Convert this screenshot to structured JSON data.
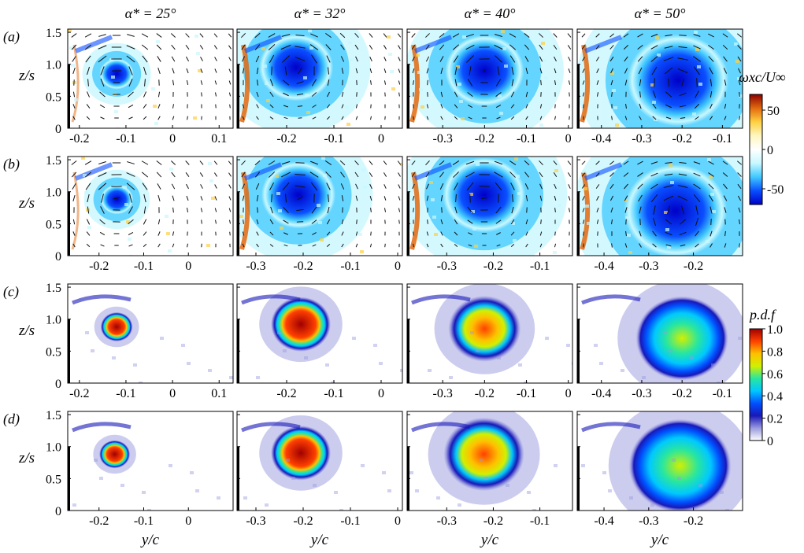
{
  "chart_data": {
    "type": "heatmap",
    "figure": {
      "column_titles": [
        "α* = 25°",
        "α* = 32°",
        "α* = 40°",
        "α* = 50°"
      ],
      "row_labels": [
        "(a)",
        "(b)",
        "(c)",
        "(d)"
      ],
      "ylabel": "z/s",
      "xlabel": "y/c",
      "ylim": [
        0,
        1.55
      ],
      "yticks": [
        "0",
        "0.5",
        "1.0",
        "1.5"
      ]
    },
    "rows": [
      {
        "label": "(a)",
        "quantity": "vorticity",
        "show_vectors": true,
        "show_xlabel": false,
        "panels": [
          {
            "xlim": [
              -0.225,
              0.13
            ],
            "xticks": [
              "-0.2",
              "-0.1",
              "0",
              "0.1"
            ],
            "xtick_values": [
              -0.2,
              -0.1,
              0,
              0.1
            ],
            "vortex": {
              "y": -0.12,
              "z": 0.85,
              "r": 0.035
            }
          },
          {
            "xlim": [
              -0.305,
              0.045
            ],
            "xticks": [
              "-0.2",
              "-0.1",
              "0"
            ],
            "xtick_values": [
              -0.2,
              -0.1,
              0
            ],
            "vortex": {
              "y": -0.18,
              "z": 0.95,
              "r": 0.075
            }
          },
          {
            "xlim": [
              -0.385,
              0.01
            ],
            "xticks": [
              "-0.3",
              "-0.2",
              "-0.1",
              "0"
            ],
            "xtick_values": [
              -0.3,
              -0.2,
              -0.1,
              0
            ],
            "vortex": {
              "y": -0.2,
              "z": 0.9,
              "r": 0.09
            }
          },
          {
            "xlim": [
              -0.46,
              -0.05
            ],
            "xticks": [
              "-0.4",
              "-0.3",
              "-0.2",
              "-0.1"
            ],
            "xtick_values": [
              -0.4,
              -0.3,
              -0.2,
              -0.1
            ],
            "vortex": {
              "y": -0.21,
              "z": 0.75,
              "r": 0.12
            }
          }
        ]
      },
      {
        "label": "(b)",
        "quantity": "vorticity",
        "show_vectors": true,
        "show_xlabel": false,
        "panels": [
          {
            "xlim": [
              -0.27,
              0.1
            ],
            "xticks": [
              "-0.2",
              "-0.1",
              "0"
            ],
            "xtick_values": [
              -0.2,
              -0.1,
              0
            ],
            "vortex": {
              "y": -0.16,
              "z": 0.88,
              "r": 0.035
            }
          },
          {
            "xlim": [
              -0.34,
              0.01
            ],
            "xticks": [
              "-0.3",
              "-0.2",
              "-0.1",
              "0"
            ],
            "xtick_values": [
              -0.3,
              -0.2,
              -0.1,
              0
            ],
            "vortex": {
              "y": -0.21,
              "z": 0.95,
              "r": 0.075
            }
          },
          {
            "xlim": [
              -0.385,
              -0.03
            ],
            "xticks": [
              "-0.3",
              "-0.2",
              "-0.1"
            ],
            "xtick_values": [
              -0.3,
              -0.2,
              -0.1
            ],
            "vortex": {
              "y": -0.22,
              "z": 0.95,
              "r": 0.085
            }
          },
          {
            "xlim": [
              -0.46,
              -0.09
            ],
            "xticks": [
              "-0.4",
              "-0.3",
              "-0.2"
            ],
            "xtick_values": [
              -0.4,
              -0.3,
              -0.2
            ],
            "vortex": {
              "y": -0.24,
              "z": 0.7,
              "r": 0.11
            }
          }
        ]
      },
      {
        "label": "(c)",
        "quantity": "pdf",
        "show_vectors": false,
        "show_xlabel": false,
        "panels": [
          {
            "xlim": [
              -0.225,
              0.13
            ],
            "xticks": [
              "-0.2",
              "-0.1",
              "0",
              "0.1"
            ],
            "xtick_values": [
              -0.2,
              -0.1,
              0,
              0.1
            ],
            "vortex": {
              "y": -0.12,
              "z": 0.88,
              "r": 0.03
            }
          },
          {
            "xlim": [
              -0.305,
              0.045
            ],
            "xticks": [
              "-0.2",
              "-0.1",
              "0"
            ],
            "xtick_values": [
              -0.2,
              -0.1,
              0
            ],
            "vortex": {
              "y": -0.17,
              "z": 0.92,
              "r": 0.055
            }
          },
          {
            "xlim": [
              -0.385,
              0.01
            ],
            "xticks": [
              "-0.3",
              "-0.2",
              "-0.1",
              "0"
            ],
            "xtick_values": [
              -0.3,
              -0.2,
              -0.1,
              0
            ],
            "vortex": {
              "y": -0.2,
              "z": 0.85,
              "r": 0.075
            }
          },
          {
            "xlim": [
              -0.46,
              -0.05
            ],
            "xticks": [
              "-0.4",
              "-0.3",
              "-0.2",
              "-0.1"
            ],
            "xtick_values": [
              -0.4,
              -0.3,
              -0.2,
              -0.1
            ],
            "vortex": {
              "y": -0.2,
              "z": 0.7,
              "r": 0.1
            }
          }
        ]
      },
      {
        "label": "(d)",
        "quantity": "pdf",
        "show_vectors": false,
        "show_xlabel": true,
        "panels": [
          {
            "xlim": [
              -0.27,
              0.1
            ],
            "xticks": [
              "-0.2",
              "-0.1",
              "0"
            ],
            "xtick_values": [
              -0.2,
              -0.1,
              0
            ],
            "vortex": {
              "y": -0.165,
              "z": 0.88,
              "r": 0.03
            }
          },
          {
            "xlim": [
              -0.34,
              0.01
            ],
            "xticks": [
              "-0.3",
              "-0.2",
              "-0.1",
              "0"
            ],
            "xtick_values": [
              -0.3,
              -0.2,
              -0.1,
              0
            ],
            "vortex": {
              "y": -0.205,
              "z": 0.9,
              "r": 0.055
            }
          },
          {
            "xlim": [
              -0.385,
              -0.03
            ],
            "xticks": [
              "-0.3",
              "-0.2",
              "-0.1"
            ],
            "xtick_values": [
              -0.3,
              -0.2,
              -0.1
            ],
            "vortex": {
              "y": -0.22,
              "z": 0.88,
              "r": 0.075
            }
          },
          {
            "xlim": [
              -0.46,
              -0.09
            ],
            "xticks": [
              "-0.4",
              "-0.3",
              "-0.2"
            ],
            "xtick_values": [
              -0.4,
              -0.3,
              -0.2
            ],
            "vortex": {
              "y": -0.23,
              "z": 0.7,
              "r": 0.1
            }
          }
        ]
      }
    ],
    "colorbars": [
      {
        "title": "ωxc/U∞",
        "range": [
          -70,
          70
        ],
        "ticks": [
          "50",
          "0",
          "-50"
        ],
        "tick_values": [
          50,
          0,
          -50
        ],
        "colors": [
          "#0000c8",
          "#0a4fff",
          "#3fc8ff",
          "#c8f8ff",
          "#ffffff",
          "#fff6c0",
          "#ffd040",
          "#e26a10",
          "#8c0000"
        ]
      },
      {
        "title": "p.d.f",
        "range": [
          0,
          1.0
        ],
        "ticks": [
          "1.0",
          "0.8",
          "0.6",
          "0.4",
          "0.2",
          "0"
        ],
        "tick_values": [
          1.0,
          0.8,
          0.6,
          0.4,
          0.2,
          0
        ],
        "colors": [
          "#ffffff",
          "#9a9ae0",
          "#1818b8",
          "#0050ff",
          "#00c8ff",
          "#28e6a0",
          "#d2f000",
          "#ffc000",
          "#ff4000",
          "#a00000"
        ]
      }
    ]
  }
}
